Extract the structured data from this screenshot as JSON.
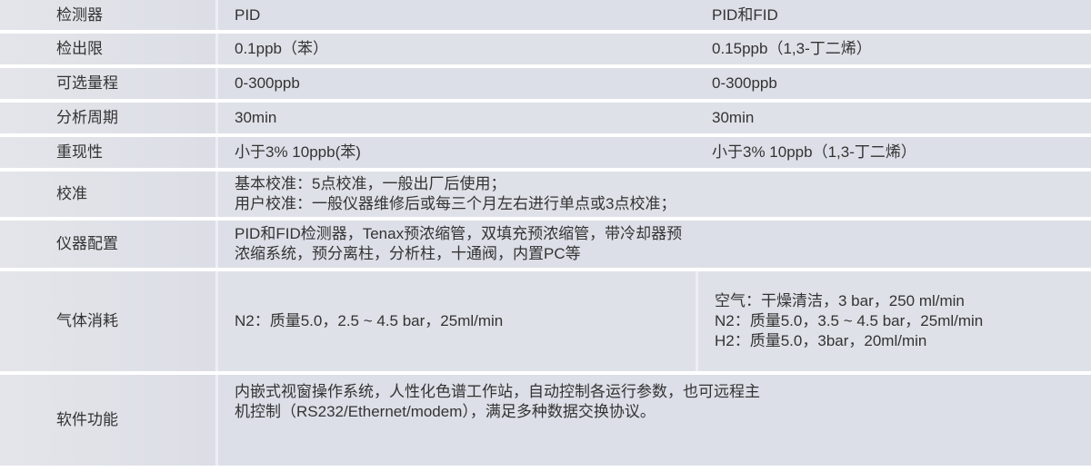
{
  "rows": [
    {
      "label": "检测器",
      "col1": "PID",
      "col2": "PID和FID"
    },
    {
      "label": "检出限",
      "col1": "0.1ppb（苯）",
      "col2": "0.15ppb（1,3-丁二烯）"
    },
    {
      "label": "可选量程",
      "col1": "0-300ppb",
      "col2": "0-300ppb"
    },
    {
      "label": "分析周期",
      "col1": "30min",
      "col2": "30min"
    },
    {
      "label": "重现性",
      "col1": "小于3% 10ppb(苯)",
      "col2": "小于3% 10ppb（1,3-丁二烯）"
    },
    {
      "label": "校准",
      "lines": [
        "基本校准：5点校准，一般出厂后使用；",
        "用户校准：一般仪器维修后或每三个月左右进行单点或3点校准；"
      ]
    },
    {
      "label": "仪器配置",
      "lines": [
        "PID和FID检测器，Tenax预浓缩管，双填充预浓缩管，带冷却器预",
        "浓缩系统，预分离柱，分析柱，十通阀，内置PC等"
      ]
    },
    {
      "label": "气体消耗",
      "col1": "N2：质量5.0，2.5 ~ 4.5 bar，25ml/min",
      "col2_lines": [
        "空气：干燥清洁，3 bar，250 ml/min",
        "N2：质量5.0，3.5 ~ 4.5 bar，25ml/min",
        "H2：质量5.0，3bar，20ml/min"
      ]
    },
    {
      "label": "软件功能",
      "lines": [
        "内嵌式视窗操作系统，人性化色谱工作站，自动控制各运行参数，也可远程主",
        "机控制（RS232/Ethernet/modem），满足多种数据交换协议。"
      ]
    }
  ]
}
